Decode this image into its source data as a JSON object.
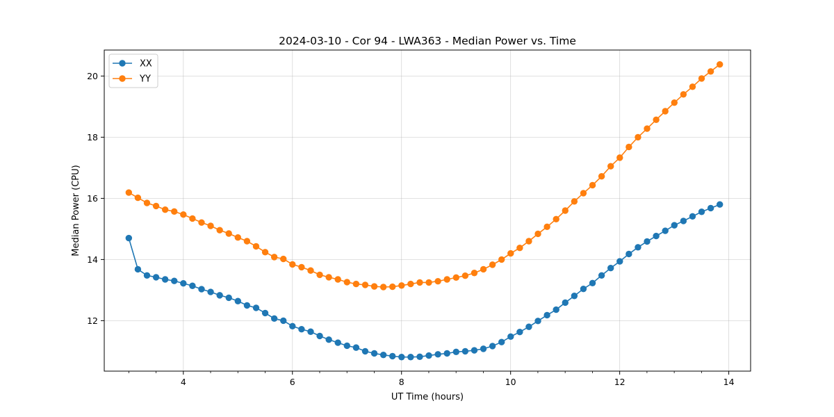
{
  "chart_data": {
    "type": "line",
    "title": "2024-03-10 - Cor 94 - LWA363 - Median Power vs. Time",
    "xlabel": "UT Time (hours)",
    "ylabel": "Median Power (CPU)",
    "xlim": [
      2.55,
      14.4
    ],
    "ylim": [
      10.35,
      20.85
    ],
    "xticks": [
      4,
      6,
      8,
      10,
      12,
      14
    ],
    "yticks": [
      12,
      14,
      16,
      18,
      20
    ],
    "grid": true,
    "legend_position": "top-left",
    "x_start": 3.0,
    "x_step": 0.1667,
    "series": [
      {
        "name": "XX",
        "color": "#1f77b4",
        "values": [
          14.7,
          13.68,
          13.48,
          13.42,
          13.35,
          13.3,
          13.22,
          13.14,
          13.03,
          12.94,
          12.83,
          12.75,
          12.64,
          12.5,
          12.42,
          12.25,
          12.07,
          12.0,
          11.82,
          11.72,
          11.64,
          11.5,
          11.38,
          11.28,
          11.18,
          11.12,
          11.0,
          10.93,
          10.88,
          10.84,
          10.81,
          10.81,
          10.82,
          10.86,
          10.9,
          10.93,
          10.98,
          11.0,
          11.03,
          11.08,
          11.17,
          11.3,
          11.48,
          11.63,
          11.8,
          11.99,
          12.18,
          12.36,
          12.59,
          12.81,
          13.04,
          13.23,
          13.48,
          13.72,
          13.94,
          14.18,
          14.4,
          14.59,
          14.77,
          14.94,
          15.12,
          15.26,
          15.41,
          15.56,
          15.68,
          15.8
        ]
      },
      {
        "name": "YY",
        "color": "#ff7f0e",
        "values": [
          16.19,
          16.02,
          15.85,
          15.75,
          15.63,
          15.57,
          15.47,
          15.34,
          15.21,
          15.1,
          14.96,
          14.85,
          14.72,
          14.6,
          14.43,
          14.24,
          14.08,
          14.02,
          13.84,
          13.75,
          13.64,
          13.5,
          13.42,
          13.35,
          13.26,
          13.2,
          13.17,
          13.12,
          13.1,
          13.11,
          13.15,
          13.2,
          13.25,
          13.25,
          13.29,
          13.35,
          13.41,
          13.47,
          13.56,
          13.68,
          13.83,
          14.0,
          14.2,
          14.38,
          14.6,
          14.84,
          15.07,
          15.32,
          15.6,
          15.9,
          16.17,
          16.43,
          16.72,
          17.05,
          17.33,
          17.68,
          18.0,
          18.28,
          18.57,
          18.85,
          19.13,
          19.4,
          19.65,
          19.92,
          20.15,
          20.38
        ]
      }
    ]
  }
}
